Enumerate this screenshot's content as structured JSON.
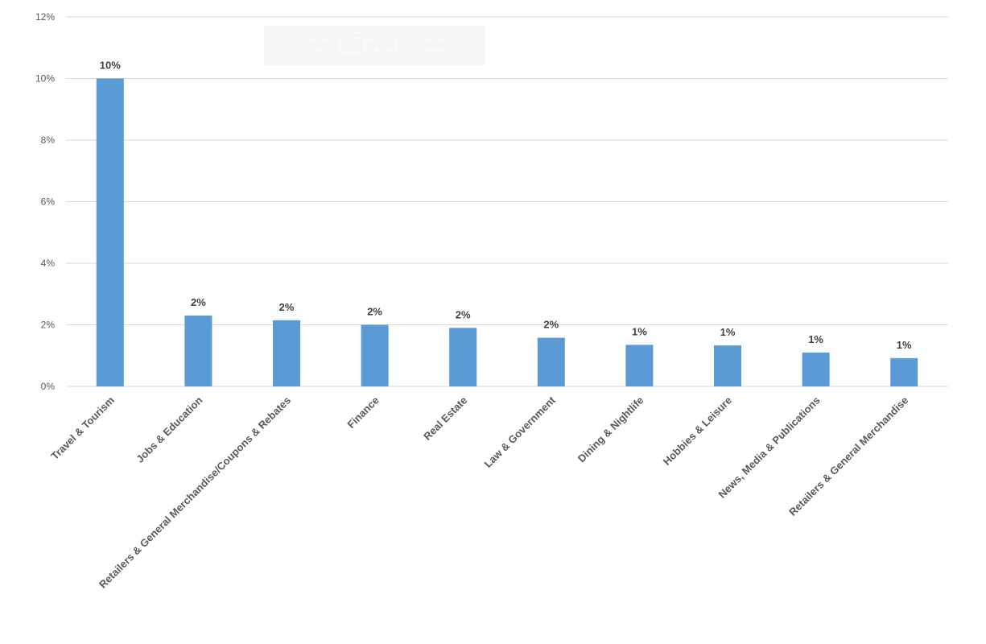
{
  "fullscreen_banner": {
    "press": "Press",
    "key": "Esc",
    "rest": "to exit full screen"
  },
  "chart_data": {
    "type": "bar",
    "categories": [
      "Travel & Tourism",
      "Jobs & Education",
      "Retailers & General Merchandise/Coupons & Rebates",
      "Finance",
      "Real Estate",
      "Law & Government",
      "Dining & Nightlife",
      "Hobbies & Leisure",
      "News, Media & Publications",
      "Retailers & General Merchandise"
    ],
    "values": [
      10.0,
      2.3,
      2.15,
      2.0,
      1.9,
      1.58,
      1.35,
      1.33,
      1.1,
      0.92
    ],
    "data_labels": [
      "10%",
      "2%",
      "2%",
      "2%",
      "2%",
      "2%",
      "1%",
      "1%",
      "1%",
      "1%"
    ],
    "yticks": [
      0,
      2,
      4,
      6,
      8,
      10,
      12
    ],
    "ytick_labels": [
      "0%",
      "2%",
      "4%",
      "6%",
      "8%",
      "10%",
      "12%"
    ],
    "ylim": [
      0,
      12
    ],
    "bar_color": "#5b9bd5",
    "grid": true,
    "legend": "none"
  }
}
